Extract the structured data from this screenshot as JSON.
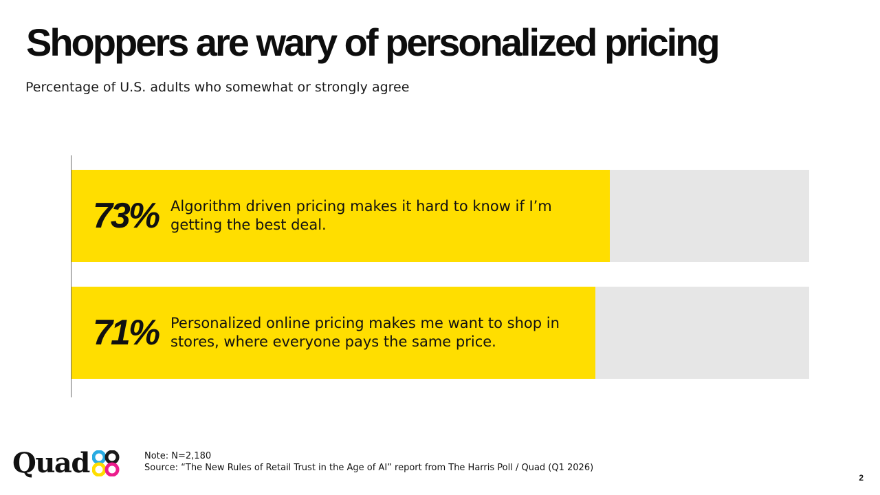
{
  "title": "Shoppers are wary of personalized pricing",
  "subtitle": "Percentage of U.S. adults who somewhat or strongly agree",
  "chart_data": {
    "type": "bar",
    "orientation": "horizontal",
    "title": "Shoppers are wary of personalized pricing",
    "subtitle": "Percentage of U.S. adults who somewhat or strongly agree",
    "categories": [
      "Algorithm driven pricing makes it hard to know if I’m getting the best deal.",
      "Personalized online pricing makes me want to shop in stores, where everyone pays the same price."
    ],
    "values": [
      73,
      71
    ],
    "value_labels": [
      "73%",
      "71%"
    ],
    "xlim": [
      0,
      100
    ],
    "grid": false,
    "legend": "none",
    "colors": {
      "bar": "#ffde00",
      "track": "#e6e6e6"
    }
  },
  "footer": {
    "note": "Note: N=2,180",
    "source": "Source: “The New Rules of Retail Trust in the Age of AI” report from The Harris Poll / Quad (Q1 2026)",
    "logo_text": "Quad",
    "page_number": "2"
  },
  "logo_colors": [
    "#29abe2",
    "#ec1c8c",
    "#ffde00",
    "#1a1a1a"
  ]
}
